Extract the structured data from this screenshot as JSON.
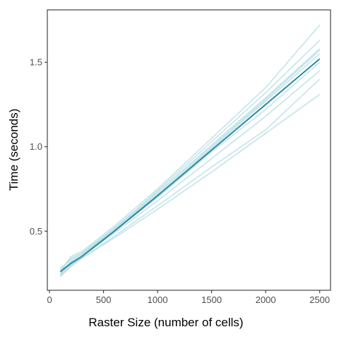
{
  "chart_data": {
    "type": "line",
    "title": "",
    "xlabel": "Raster Size (number of cells)",
    "ylabel": "Time (seconds)",
    "xlim": [
      -20,
      2600
    ],
    "ylim": [
      0.15,
      1.81
    ],
    "grid": false,
    "legend": "none",
    "x_ticks": [
      0,
      500,
      1000,
      1500,
      2000,
      2500
    ],
    "x_tick_labels": [
      "0",
      "500",
      "1000",
      "1500",
      "2000",
      "2500"
    ],
    "y_ticks": [
      0.5,
      1.0,
      1.5
    ],
    "y_tick_labels": [
      "0.5",
      "1.0",
      "1.5"
    ],
    "x": [
      100,
      200,
      300,
      600,
      1000,
      1500,
      2000,
      2500
    ],
    "replicate_color": "#b5dde3",
    "mean_color": "#2a8ba0",
    "replicates": [
      {
        "values": [
          0.26,
          0.35,
          0.38,
          0.53,
          0.75,
          1.05,
          1.35,
          1.72
        ]
      },
      {
        "values": [
          0.27,
          0.34,
          0.37,
          0.51,
          0.74,
          1.03,
          1.32,
          1.63
        ]
      },
      {
        "values": [
          0.28,
          0.33,
          0.37,
          0.52,
          0.73,
          1.01,
          1.29,
          1.58
        ]
      },
      {
        "values": [
          0.26,
          0.32,
          0.36,
          0.51,
          0.72,
          1.0,
          1.28,
          1.57
        ]
      },
      {
        "values": [
          0.25,
          0.31,
          0.35,
          0.5,
          0.71,
          0.99,
          1.27,
          1.55
        ]
      },
      {
        "values": [
          0.25,
          0.32,
          0.36,
          0.5,
          0.7,
          0.97,
          1.22,
          1.5
        ]
      },
      {
        "values": [
          0.24,
          0.3,
          0.35,
          0.49,
          0.68,
          0.93,
          1.18,
          1.45
        ]
      },
      {
        "values": [
          0.23,
          0.29,
          0.34,
          0.47,
          0.65,
          0.88,
          1.1,
          1.4
        ]
      },
      {
        "values": [
          0.24,
          0.3,
          0.34,
          0.46,
          0.63,
          0.85,
          1.08,
          1.31
        ]
      }
    ],
    "mean": {
      "values": [
        0.26,
        0.31,
        0.35,
        0.5,
        0.71,
        0.98,
        1.25,
        1.52
      ]
    }
  }
}
